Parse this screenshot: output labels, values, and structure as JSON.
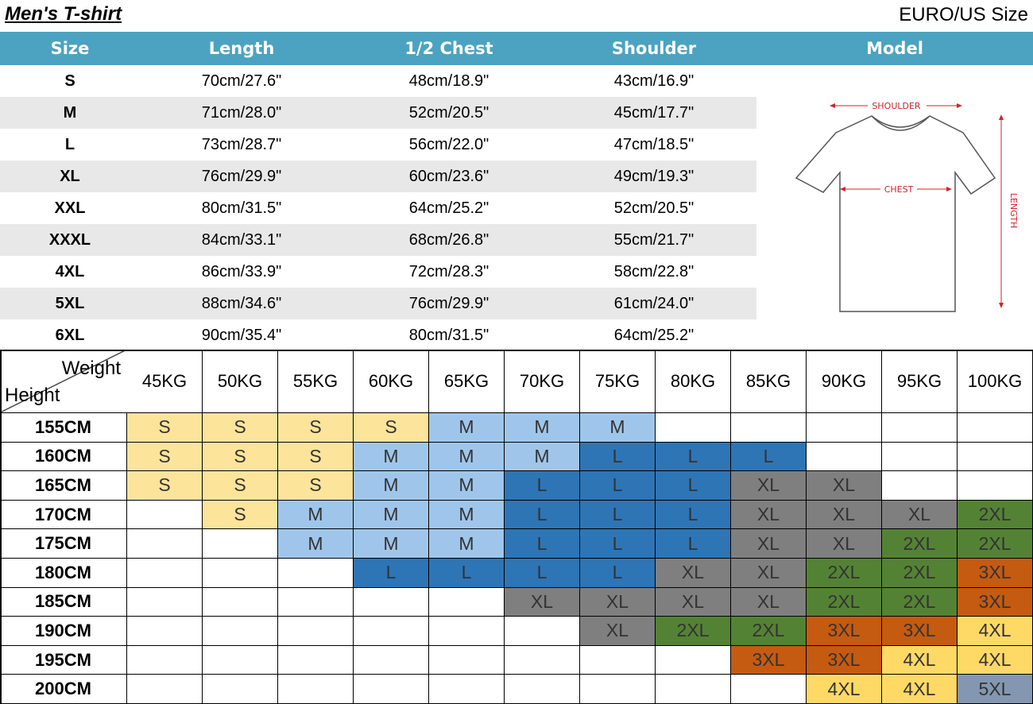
{
  "header": {
    "title": "Men's T-shirt",
    "subtitle": "EURO/US Size"
  },
  "size_table": {
    "columns": [
      "Size",
      "Length",
      "1/2 Chest",
      "Shoulder",
      "Model"
    ],
    "header_color": "#4ba3c1",
    "rows": [
      [
        "S",
        "70cm/27.6\"",
        "48cm/18.9\"",
        "43cm/16.9\""
      ],
      [
        "M",
        "71cm/28.0\"",
        "52cm/20.5\"",
        "45cm/17.7\""
      ],
      [
        "L",
        "73cm/28.7\"",
        "56cm/22.0\"",
        "47cm/18.5\""
      ],
      [
        "XL",
        "76cm/29.9\"",
        "60cm/23.6\"",
        "49cm/19.3\""
      ],
      [
        "XXL",
        "80cm/31.5\"",
        "64cm/25.2\"",
        "52cm/20.5\""
      ],
      [
        "XXXL",
        "84cm/33.1\"",
        "68cm/26.8\"",
        "55cm/21.7\""
      ],
      [
        "4XL",
        "86cm/33.9\"",
        "72cm/28.3\"",
        "58cm/22.8\""
      ],
      [
        "5XL",
        "88cm/34.6\"",
        "76cm/29.9\"",
        "61cm/24.0\""
      ],
      [
        "6XL",
        "90cm/35.4\"",
        "80cm/31.5\"",
        "64cm/25.2\""
      ]
    ]
  },
  "model": {
    "shoulder": "SHOULDER",
    "chest": "CHEST",
    "length": "LENGTH"
  },
  "fit_table": {
    "corner": {
      "weight": "Weight",
      "height": "Height"
    },
    "weights": [
      "45KG",
      "50KG",
      "55KG",
      "60KG",
      "65KG",
      "70KG",
      "75KG",
      "80KG",
      "85KG",
      "90KG",
      "95KG",
      "100KG"
    ],
    "size_colors": {
      "S": "#fde49b",
      "M": "#9fc6ea",
      "L": "#2e75b6",
      "XL": "#7f7f7f",
      "2XL": "#548235",
      "3XL": "#c55a11",
      "4XL": "#ffd966",
      "5XL": "#8497b0"
    },
    "rows": [
      {
        "height": "155CM",
        "cells": [
          "S",
          "S",
          "S",
          "S",
          "M",
          "M",
          "M",
          null,
          null,
          null,
          null,
          null
        ]
      },
      {
        "height": "160CM",
        "cells": [
          "S",
          "S",
          "S",
          "M",
          "M",
          "M",
          "L",
          "L",
          "L",
          null,
          null,
          null
        ]
      },
      {
        "height": "165CM",
        "cells": [
          "S",
          "S",
          "S",
          "M",
          "M",
          "L",
          "L",
          "L",
          "XL",
          "XL",
          null,
          null
        ]
      },
      {
        "height": "170CM",
        "cells": [
          null,
          "S",
          "M",
          "M",
          "M",
          "L",
          "L",
          "L",
          "XL",
          "XL",
          "XL",
          "2XL"
        ]
      },
      {
        "height": "175CM",
        "cells": [
          null,
          null,
          "M",
          "M",
          "M",
          "L",
          "L",
          "L",
          "XL",
          "XL",
          "2XL",
          "2XL"
        ]
      },
      {
        "height": "180CM",
        "cells": [
          null,
          null,
          null,
          "L",
          "L",
          "L",
          "L",
          "XL",
          "XL",
          "2XL",
          "2XL",
          "3XL"
        ]
      },
      {
        "height": "185CM",
        "cells": [
          null,
          null,
          null,
          null,
          null,
          "XL",
          "XL",
          "XL",
          "XL",
          "2XL",
          "2XL",
          "3XL"
        ]
      },
      {
        "height": "190CM",
        "cells": [
          null,
          null,
          null,
          null,
          null,
          null,
          "XL",
          "2XL",
          "2XL",
          "3XL",
          "3XL",
          "4XL"
        ]
      },
      {
        "height": "195CM",
        "cells": [
          null,
          null,
          null,
          null,
          null,
          null,
          null,
          null,
          "3XL",
          "3XL",
          "4XL",
          "4XL"
        ]
      },
      {
        "height": "200CM",
        "cells": [
          null,
          null,
          null,
          null,
          null,
          null,
          null,
          null,
          null,
          "4XL",
          "4XL",
          "5XL"
        ]
      }
    ]
  }
}
